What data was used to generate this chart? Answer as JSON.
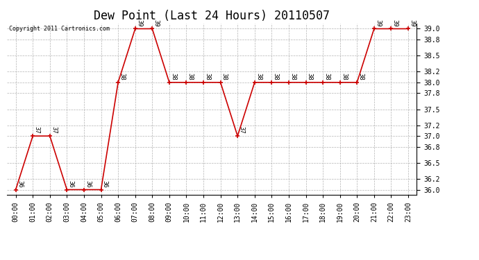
{
  "title": "Dew Point (Last 24 Hours) 20110507",
  "copyright_text": "Copyright 2011 Cartronics.com",
  "hours": [
    "00:00",
    "01:00",
    "02:00",
    "03:00",
    "04:00",
    "05:00",
    "06:00",
    "07:00",
    "08:00",
    "09:00",
    "10:00",
    "11:00",
    "12:00",
    "13:00",
    "14:00",
    "15:00",
    "16:00",
    "17:00",
    "18:00",
    "19:00",
    "20:00",
    "21:00",
    "22:00",
    "23:00"
  ],
  "values": [
    36,
    37,
    37,
    36,
    36,
    36,
    38,
    39,
    39,
    38,
    38,
    38,
    38,
    37,
    38,
    38,
    38,
    38,
    38,
    38,
    38,
    39,
    39,
    39
  ],
  "line_color": "#cc0000",
  "marker_color": "#cc0000",
  "bg_color": "#ffffff",
  "plot_bg_color": "#ffffff",
  "grid_color": "#aaaaaa",
  "title_fontsize": 12,
  "tick_fontsize": 7,
  "annotation_fontsize": 6.5,
  "ylim_min": 35.9,
  "ylim_max": 39.1,
  "yticks": [
    36.0,
    36.2,
    36.5,
    36.8,
    37.0,
    37.2,
    37.5,
    37.8,
    38.0,
    38.2,
    38.5,
    38.8,
    39.0
  ],
  "ytick_labels": [
    "36.0",
    "36.2",
    "36.5",
    "36.8",
    "37.0",
    "37.2",
    "37.5",
    "37.8",
    "38.0",
    "38.2",
    "38.5",
    "38.8",
    "39.0"
  ]
}
